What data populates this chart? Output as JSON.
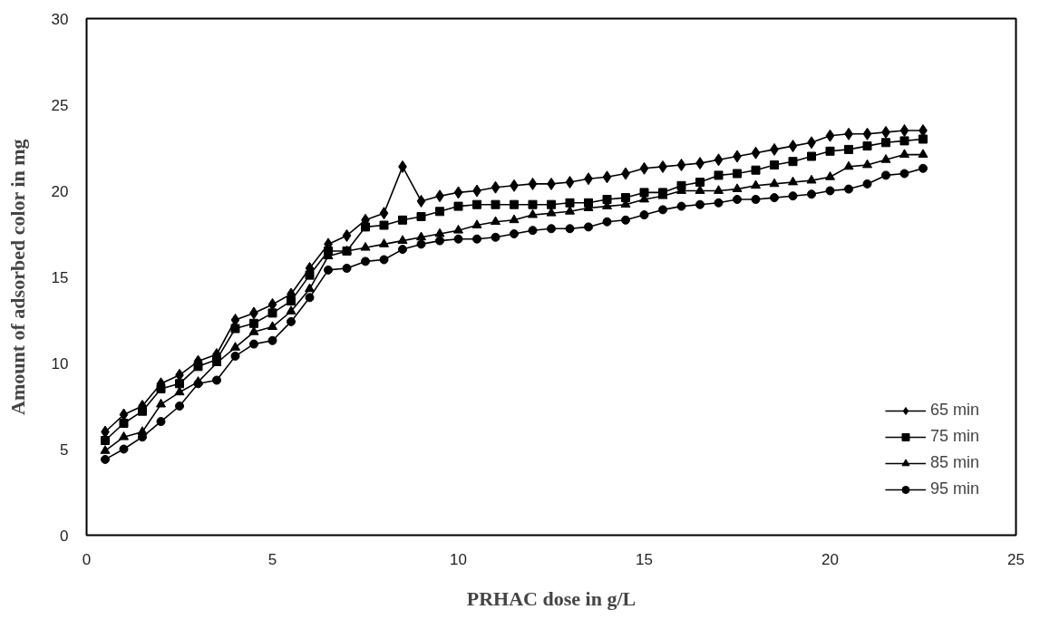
{
  "chart_data": {
    "type": "line",
    "xlabel": "PRHAC dose in g/L",
    "ylabel": "Amount of adsorbed color in mg",
    "x": [
      0.5,
      1,
      1.5,
      2,
      2.5,
      3,
      3.5,
      4,
      4.5,
      5,
      5.5,
      6,
      6.5,
      7,
      7.5,
      8,
      8.5,
      9,
      9.5,
      10,
      10.5,
      11,
      11.5,
      12,
      12.5,
      13,
      13.5,
      14,
      14.5,
      15,
      15.5,
      16,
      16.5,
      17,
      17.5,
      18,
      18.5,
      19,
      19.5,
      20,
      20.5,
      21,
      21.5,
      22,
      22.5
    ],
    "xlim": [
      0,
      25
    ],
    "xticks": [
      0,
      5,
      10,
      15,
      20,
      25
    ],
    "ylim": [
      0,
      30
    ],
    "yticks": [
      0,
      5,
      10,
      15,
      20,
      25,
      30
    ],
    "grid": false,
    "legend": "bottom right",
    "line_style": "solid",
    "series": [
      {
        "name": "65 min",
        "color": "#000000",
        "marker": "diamond",
        "values": [
          6.0,
          7.0,
          7.5,
          8.8,
          9.3,
          10.1,
          10.5,
          12.5,
          12.9,
          13.4,
          14.0,
          15.5,
          16.9,
          17.4,
          18.3,
          18.7,
          21.4,
          19.4,
          19.7,
          19.9,
          20.0,
          20.2,
          20.3,
          20.4,
          20.4,
          20.5,
          20.7,
          20.8,
          21.0,
          21.3,
          21.4,
          21.5,
          21.6,
          21.8,
          22.0,
          22.2,
          22.4,
          22.6,
          22.8,
          23.2,
          23.3,
          23.3,
          23.4,
          23.5,
          23.5
        ]
      },
      {
        "name": "75 min",
        "color": "#000000",
        "marker": "square",
        "values": [
          5.5,
          6.5,
          7.2,
          8.5,
          8.8,
          9.8,
          10.2,
          12.0,
          12.3,
          12.9,
          13.6,
          15.1,
          16.5,
          16.5,
          17.9,
          18.0,
          18.3,
          18.5,
          18.8,
          19.1,
          19.2,
          19.2,
          19.2,
          19.2,
          19.2,
          19.3,
          19.3,
          19.5,
          19.6,
          19.9,
          19.9,
          20.3,
          20.5,
          20.9,
          21.0,
          21.2,
          21.5,
          21.7,
          22.0,
          22.3,
          22.4,
          22.6,
          22.8,
          22.9,
          23.0
        ]
      },
      {
        "name": "85 min",
        "color": "#000000",
        "marker": "triangle",
        "values": [
          4.9,
          5.7,
          6.0,
          7.6,
          8.3,
          8.9,
          10.0,
          10.9,
          11.8,
          12.1,
          13.0,
          14.3,
          16.2,
          16.5,
          16.7,
          16.9,
          17.1,
          17.3,
          17.5,
          17.7,
          18.0,
          18.2,
          18.3,
          18.6,
          18.7,
          18.8,
          19.0,
          19.1,
          19.2,
          19.5,
          19.7,
          20.0,
          20.0,
          20.0,
          20.1,
          20.3,
          20.4,
          20.5,
          20.6,
          20.8,
          21.4,
          21.5,
          21.8,
          22.1,
          22.1
        ]
      },
      {
        "name": "95 min",
        "color": "#000000",
        "marker": "circle",
        "values": [
          4.4,
          5.0,
          5.7,
          6.6,
          7.5,
          8.8,
          9.0,
          10.4,
          11.1,
          11.3,
          12.4,
          13.8,
          15.4,
          15.5,
          15.9,
          16.0,
          16.6,
          16.9,
          17.1,
          17.2,
          17.2,
          17.3,
          17.5,
          17.7,
          17.8,
          17.8,
          17.9,
          18.2,
          18.3,
          18.6,
          18.9,
          19.1,
          19.2,
          19.3,
          19.5,
          19.5,
          19.6,
          19.7,
          19.8,
          20.0,
          20.1,
          20.4,
          20.9,
          21.0,
          21.3
        ]
      }
    ]
  }
}
